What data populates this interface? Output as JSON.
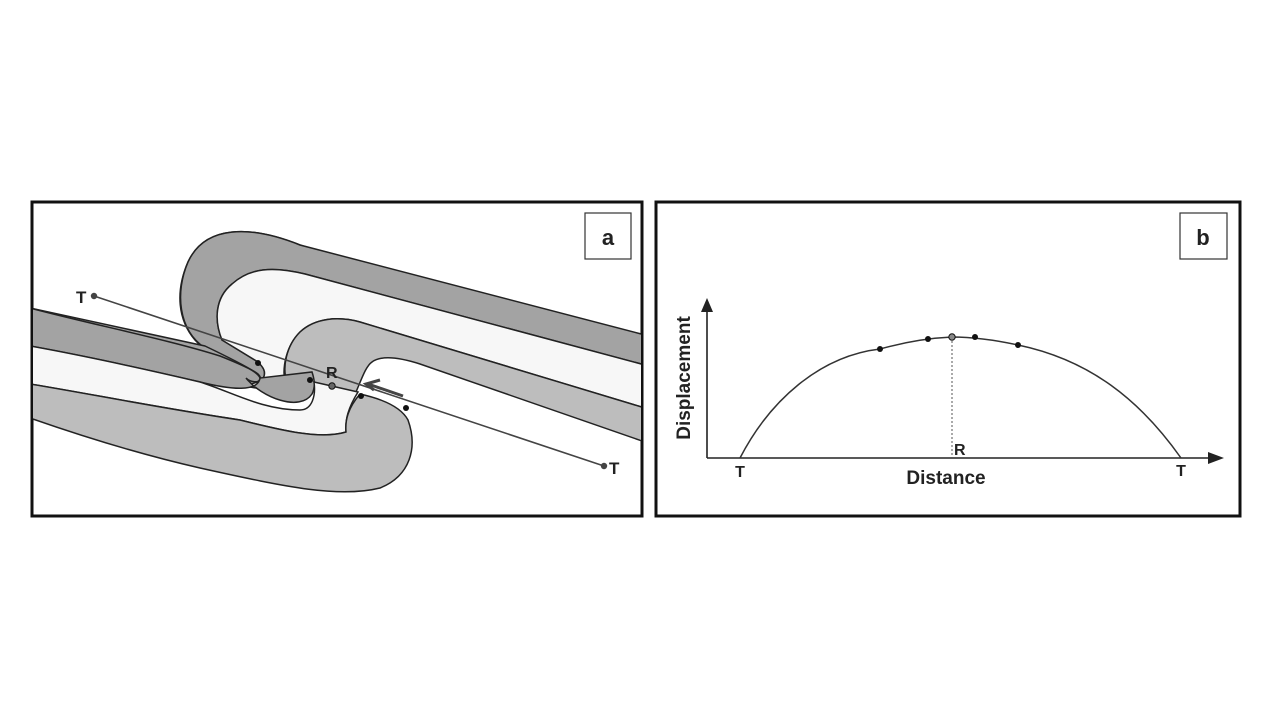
{
  "panel_a": {
    "tag": "a",
    "fault_tip_left": "T",
    "fault_tip_right": "T",
    "reference_point": "R",
    "colors": {
      "dark_layer": "#a3a3a3",
      "light_layer": "#f7f7f7",
      "mid_layer": "#bdbdbd"
    }
  },
  "panel_b": {
    "tag": "b",
    "x_axis_label": "Distance",
    "y_axis_label": "Displacement",
    "tip_left": "T",
    "tip_right": "T",
    "reference_point": "R"
  }
}
